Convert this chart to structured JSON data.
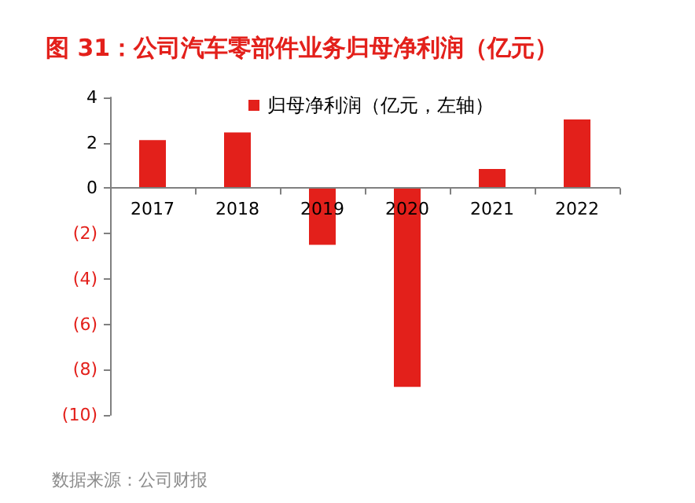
{
  "chart_data": {
    "type": "bar",
    "title": "图 31：公司汽车零部件业务归母净利润（亿元）",
    "categories": [
      "2017",
      "2018",
      "2019",
      "2020",
      "2021",
      "2022"
    ],
    "series": [
      {
        "name": "归母净利润（亿元，左轴）",
        "color": "#e3201b",
        "values": [
          2.12,
          2.46,
          -2.5,
          -8.76,
          0.85,
          3.03
        ]
      }
    ],
    "ylim": [
      -10,
      4
    ],
    "yticks": [
      {
        "value": -10,
        "label": "(10)"
      },
      {
        "value": -8,
        "label": "(8)"
      },
      {
        "value": -6,
        "label": "(6)"
      },
      {
        "value": -4,
        "label": "(4)"
      },
      {
        "value": -2,
        "label": "(2)"
      },
      0,
      2,
      4
    ],
    "legend": "top",
    "annotations": [
      "数据来源：公司财报"
    ]
  }
}
